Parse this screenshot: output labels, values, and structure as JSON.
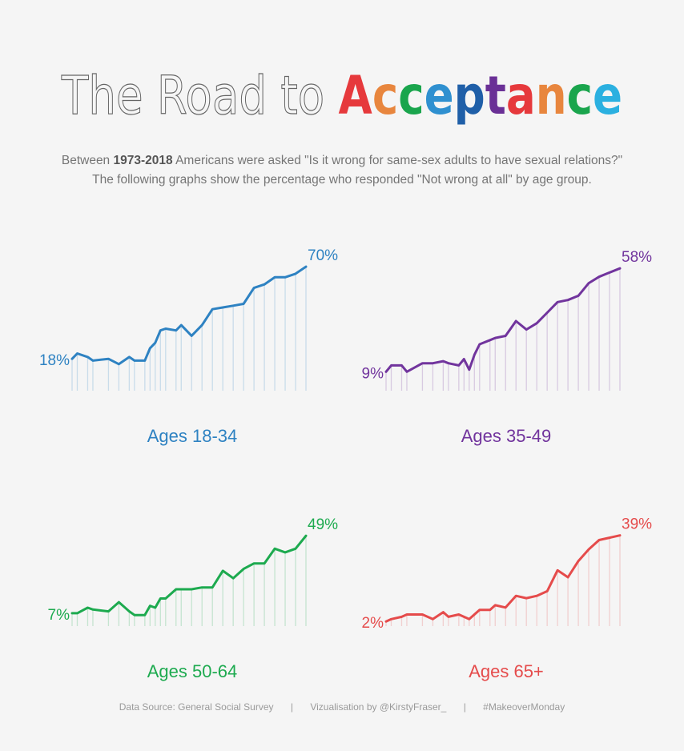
{
  "title": {
    "prefix": "The Road to ",
    "highlight": "Acceptance",
    "letter_colors": [
      "#e6393c",
      "#e8863e",
      "#1aa54d",
      "#2f90d0",
      "#1f5fa8",
      "#6a3096",
      "#e6393c",
      "#e8863e",
      "#1aa54d",
      "#2bb0e0"
    ]
  },
  "subtitle": {
    "line1_pre": "Between ",
    "line1_bold": "1973-2018",
    "line1_post": " Americans were asked \"Is it wrong for same-sex adults to have sexual relations?\"",
    "line2": "The following graphs show the percentage who responded \"Not wrong at all\" by age group."
  },
  "chart_data": [
    {
      "type": "line",
      "title": "Ages 18-34",
      "color": "#2e82c2",
      "start_label": "18%",
      "end_label": "70%",
      "ylim": [
        0,
        75
      ],
      "x": [
        1973,
        1974,
        1976,
        1977,
        1980,
        1982,
        1984,
        1985,
        1987,
        1988,
        1989,
        1990,
        1991,
        1993,
        1994,
        1996,
        1998,
        2000,
        2002,
        2004,
        2006,
        2008,
        2010,
        2012,
        2014,
        2016,
        2018
      ],
      "values": [
        18,
        21,
        19,
        17,
        18,
        15,
        19,
        17,
        17,
        24,
        27,
        34,
        35,
        34,
        37,
        31,
        37,
        46,
        47,
        48,
        49,
        58,
        60,
        64,
        64,
        66,
        70
      ]
    },
    {
      "type": "line",
      "title": "Ages 35-49",
      "color": "#71349d",
      "start_label": "9%",
      "end_label": "58%",
      "ylim": [
        0,
        63
      ],
      "x": [
        1973,
        1974,
        1976,
        1977,
        1980,
        1982,
        1984,
        1985,
        1987,
        1988,
        1989,
        1990,
        1991,
        1993,
        1994,
        1996,
        1998,
        2000,
        2002,
        2004,
        2006,
        2008,
        2010,
        2012,
        2014,
        2016,
        2018
      ],
      "values": [
        9,
        12,
        12,
        9,
        13,
        13,
        14,
        13,
        12,
        15,
        10,
        17,
        22,
        24,
        25,
        26,
        33,
        29,
        32,
        37,
        42,
        43,
        45,
        51,
        54,
        56,
        58
      ]
    },
    {
      "type": "line",
      "title": "Ages 50-64",
      "color": "#1daa4f",
      "start_label": "7%",
      "end_label": "49%",
      "ylim": [
        0,
        53
      ],
      "x": [
        1973,
        1974,
        1976,
        1977,
        1980,
        1982,
        1984,
        1985,
        1987,
        1988,
        1989,
        1990,
        1991,
        1993,
        1994,
        1996,
        1998,
        2000,
        2002,
        2004,
        2006,
        2008,
        2010,
        2012,
        2014,
        2016,
        2018
      ],
      "values": [
        7,
        7,
        10,
        9,
        8,
        13,
        8,
        6,
        6,
        11,
        10,
        15,
        15,
        20,
        20,
        20,
        21,
        21,
        30,
        26,
        31,
        34,
        34,
        42,
        40,
        42,
        49
      ]
    },
    {
      "type": "line",
      "title": "Ages 65+",
      "color": "#e54b4b",
      "start_label": "2%",
      "end_label": "39%",
      "ylim": [
        0,
        42
      ],
      "x": [
        1973,
        1974,
        1976,
        1977,
        1980,
        1982,
        1984,
        1985,
        1987,
        1988,
        1989,
        1990,
        1991,
        1993,
        1994,
        1996,
        1998,
        2000,
        2002,
        2004,
        2006,
        2008,
        2010,
        2012,
        2014,
        2016,
        2018
      ],
      "values": [
        2,
        3,
        4,
        5,
        5,
        3,
        6,
        4,
        5,
        4,
        3,
        5,
        7,
        7,
        9,
        8,
        13,
        12,
        13,
        15,
        24,
        21,
        28,
        33,
        37,
        38,
        39
      ]
    }
  ],
  "footer": {
    "source": "Data Source: General Social Survey",
    "separator": "|",
    "credit": "Vizualisation by @KirstyFraser_",
    "hashtag": "#MakeoverMonday"
  }
}
